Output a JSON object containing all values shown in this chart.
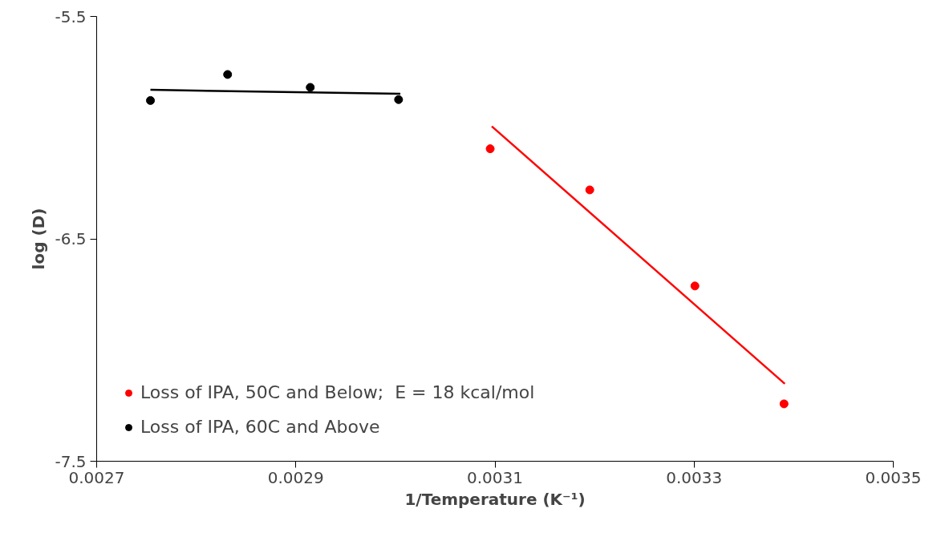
{
  "chart_data": {
    "type": "scatter",
    "xlabel": "1/Temperature (K⁻¹)",
    "ylabel": "log (D)",
    "xlim": [
      0.0027,
      0.0035
    ],
    "xticks": [
      0.0027,
      0.0029,
      0.0031,
      0.0033,
      0.0035
    ],
    "ylim": [
      -7.5,
      -5.5
    ],
    "yticks": [
      -5.5,
      -6.5,
      -7.5
    ],
    "grid": false,
    "legend": "bottom left",
    "series": [
      {
        "name": "Loss of IPA, 50C and Below;  E = 18 kcal/mol",
        "color": "#ff0000",
        "marker": "circle",
        "x": [
          0.0030952,
          0.0031952,
          0.0033008,
          0.0033903
        ],
        "values": [
          -6.095,
          -6.28,
          -6.712,
          -7.242
        ]
      },
      {
        "name": "Loss of IPA, 60C and Above",
        "color": "#000000",
        "marker": "circle",
        "x": [
          0.002754,
          0.0028315,
          0.0029145,
          0.0030032
        ],
        "values": [
          -5.878,
          -5.761,
          -5.819,
          -5.874
        ]
      },
      {
        "type": "line",
        "marker": "none",
        "color": "#ff0000",
        "x": [
          0.0030968,
          0.0033911
        ],
        "values": [
          -5.994,
          -7.152
        ]
      },
      {
        "type": "line",
        "marker": "none",
        "color": "#000000",
        "x": [
          0.002754,
          0.003005
        ],
        "values": [
          -5.83,
          -5.848
        ]
      }
    ]
  }
}
